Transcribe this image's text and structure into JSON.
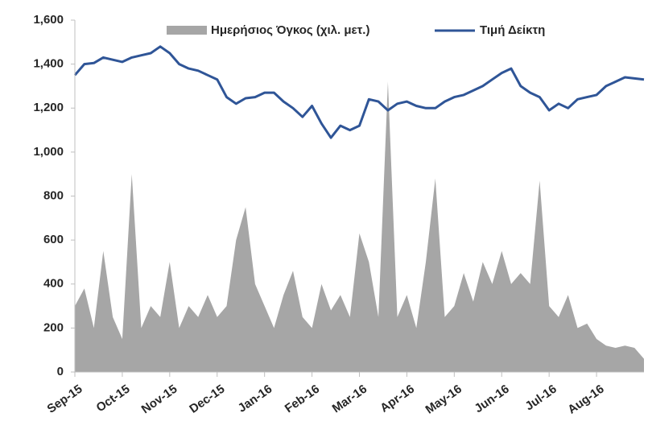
{
  "chart_data": {
    "type": "line",
    "categories": [
      "Sep-15",
      null,
      null,
      null,
      null,
      "Oct-15",
      null,
      null,
      null,
      null,
      "Nov-15",
      null,
      null,
      null,
      null,
      "Dec-15",
      null,
      null,
      null,
      null,
      "Jan-16",
      null,
      null,
      null,
      null,
      "Feb-16",
      null,
      null,
      null,
      null,
      "Mar-16",
      null,
      null,
      null,
      null,
      "Apr-16",
      null,
      null,
      null,
      null,
      "May-16",
      null,
      null,
      null,
      null,
      "Jun-16",
      null,
      null,
      null,
      null,
      "Jul-16",
      null,
      null,
      null,
      null,
      "Aug-16",
      null,
      null,
      null,
      null,
      null
    ],
    "series": [
      {
        "name": "Ημερήσιος Όγκος (χιλ. μετ.)",
        "color": "#a6a6a6",
        "kind": "area",
        "values": [
          300,
          380,
          200,
          550,
          250,
          150,
          900,
          200,
          300,
          250,
          500,
          200,
          300,
          250,
          350,
          250,
          300,
          600,
          750,
          400,
          300,
          200,
          350,
          460,
          250,
          200,
          400,
          280,
          350,
          250,
          630,
          500,
          250,
          1320,
          250,
          350,
          200,
          500,
          880,
          250,
          300,
          450,
          320,
          500,
          400,
          550,
          400,
          450,
          400,
          870,
          300,
          250,
          350,
          200,
          220,
          150,
          120,
          110,
          120,
          110,
          60
        ]
      },
      {
        "name": "Τιμή Δείκτη",
        "color": "#2f5597",
        "kind": "line",
        "values": [
          1350,
          1400,
          1405,
          1430,
          1420,
          1410,
          1430,
          1440,
          1450,
          1480,
          1450,
          1400,
          1380,
          1370,
          1350,
          1330,
          1250,
          1220,
          1245,
          1250,
          1270,
          1270,
          1230,
          1200,
          1160,
          1210,
          1130,
          1065,
          1120,
          1100,
          1120,
          1240,
          1230,
          1190,
          1220,
          1230,
          1210,
          1200,
          1200,
          1230,
          1250,
          1260,
          1280,
          1300,
          1330,
          1360,
          1380,
          1300,
          1270,
          1250,
          1190,
          1220,
          1200,
          1240,
          1250,
          1260,
          1300,
          1320,
          1340,
          1335,
          1330
        ]
      }
    ],
    "ylim": [
      0,
      1600
    ],
    "yticks": [
      0,
      200,
      400,
      600,
      800,
      {
        "value": 1000,
        "label": "1,000"
      },
      {
        "value": 1200,
        "label": "1,200"
      },
      {
        "value": 1400,
        "label": "1,400"
      },
      {
        "value": 1600,
        "label": "1,600"
      }
    ],
    "legend": "top"
  }
}
